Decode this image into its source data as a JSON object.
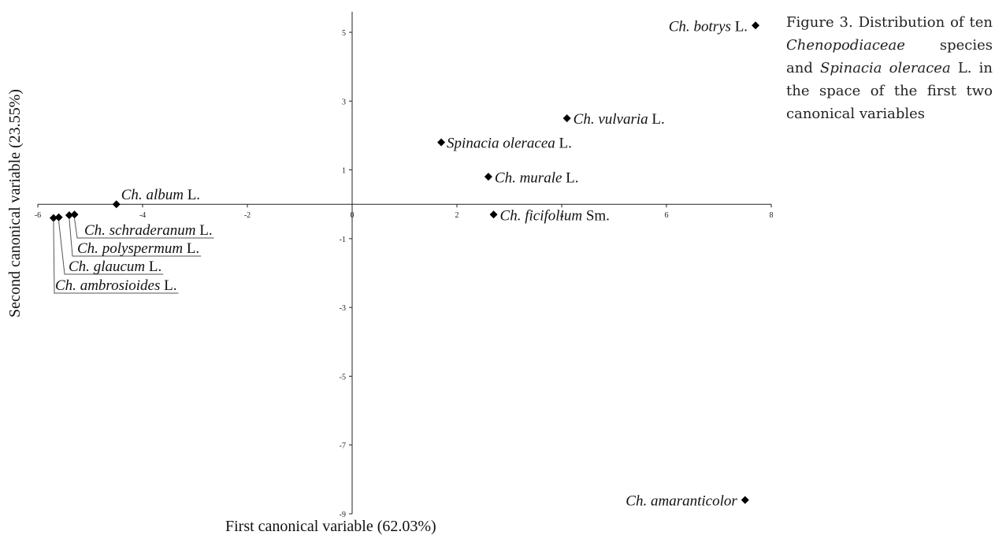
{
  "caption": {
    "prefix": "Figure 3. Distribution of ten ",
    "family": "Chenopodiaceae",
    "mid": " species and ",
    "species": "Spinacia oleracea",
    "suffix": " L. in the space of the first two canonical variables"
  },
  "chart_data": {
    "type": "scatter",
    "xlabel": "First canonical variable (62.03%)",
    "ylabel": "Second canonical variable (23.55%)",
    "xlim": [
      -6,
      8
    ],
    "ylim": [
      -9,
      5.6
    ],
    "x_ticks": [
      -6,
      -4,
      -2,
      0,
      2,
      4,
      6,
      8
    ],
    "y_ticks": [
      5,
      3,
      1,
      -1,
      -3,
      -5,
      -7,
      -9
    ],
    "grid": false,
    "legend": "none",
    "marker": "diamond",
    "points": [
      {
        "genus": "Ch.",
        "epithet": "botrys",
        "author": "L.",
        "x": 7.7,
        "y": 5.2
      },
      {
        "genus": "Ch.",
        "epithet": "vulvaria",
        "author": "L.",
        "x": 4.1,
        "y": 2.5
      },
      {
        "genus": "Spinacia",
        "epithet": "oleracea",
        "author": "L.",
        "x": 1.7,
        "y": 1.8
      },
      {
        "genus": "Ch.",
        "epithet": "murale",
        "author": "L.",
        "x": 2.6,
        "y": 0.8
      },
      {
        "genus": "Ch.",
        "epithet": "album",
        "author": "L.",
        "x": -4.5,
        "y": 0.0
      },
      {
        "genus": "Ch.",
        "epithet": "ficifolium",
        "author": "Sm.",
        "x": 2.7,
        "y": -0.3
      },
      {
        "genus": "Ch.",
        "epithet": "schraderanum",
        "author": "L.",
        "x": -5.3,
        "y": -0.3
      },
      {
        "genus": "Ch.",
        "epithet": "polyspermum",
        "author": "L.",
        "x": -5.4,
        "y": -0.32
      },
      {
        "genus": "Ch.",
        "epithet": "glaucum",
        "author": "L.",
        "x": -5.6,
        "y": -0.38
      },
      {
        "genus": "Ch.",
        "epithet": "ambrosioides",
        "author": "L.",
        "x": -5.7,
        "y": -0.4
      },
      {
        "genus": "Ch.",
        "epithet": "amaranticolor",
        "author": "",
        "x": 7.5,
        "y": -8.6
      }
    ]
  }
}
